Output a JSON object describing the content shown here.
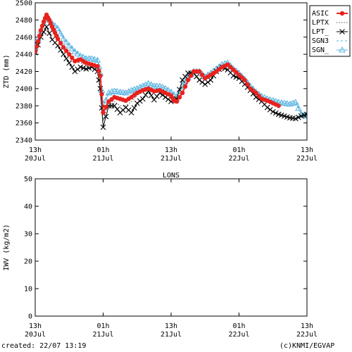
{
  "footer": {
    "created": "created: 22/07 13:19",
    "credit": "(c)KNMI/EGVAP"
  },
  "colors": {
    "ASIC": "#e8221d",
    "LPTX": "#555555",
    "LPT_": "#000000",
    "SGN3": "#5ab4e0",
    "SGN_": "#5ab4e0"
  },
  "x_ticks": [
    {
      "h": 0,
      "top": "13h",
      "bottom": "20Jul"
    },
    {
      "h": 12,
      "top": "01h",
      "bottom": "21Jul"
    },
    {
      "h": 24,
      "top": "13h",
      "bottom": "21Jul"
    },
    {
      "h": 36,
      "top": "01h",
      "bottom": "22Jul"
    },
    {
      "h": 48,
      "top": "13h",
      "bottom": "22Jul"
    }
  ],
  "chart_data": [
    {
      "type": "line",
      "ylabel": "ZTD (mm)",
      "ylim": [
        2340,
        2500
      ],
      "yticks": [
        2340,
        2360,
        2380,
        2400,
        2420,
        2440,
        2460,
        2480,
        2500
      ],
      "xlim_hours": [
        0,
        48
      ],
      "grid": false,
      "legend_position": "top-right",
      "series": [
        {
          "name": "ASIC",
          "style": "line-dots",
          "points": [
            [
              0,
              2443
            ],
            [
              0.5,
              2455
            ],
            [
              1,
              2468
            ],
            [
              1.5,
              2478
            ],
            [
              2,
              2486
            ],
            [
              2.5,
              2480
            ],
            [
              3,
              2472
            ],
            [
              3.5,
              2465
            ],
            [
              4,
              2458
            ],
            [
              5,
              2448
            ],
            [
              6,
              2440
            ],
            [
              7,
              2432
            ],
            [
              8,
              2434
            ],
            [
              9,
              2430
            ],
            [
              10,
              2428
            ],
            [
              11,
              2426
            ],
            [
              11.5,
              2415
            ],
            [
              12,
              2372
            ],
            [
              13,
              2385
            ],
            [
              14,
              2390
            ],
            [
              15,
              2388
            ],
            [
              16,
              2386
            ],
            [
              17,
              2390
            ],
            [
              18,
              2395
            ],
            [
              19,
              2398
            ],
            [
              20,
              2400
            ],
            [
              21,
              2397
            ],
            [
              22,
              2398
            ],
            [
              23,
              2395
            ],
            [
              24,
              2392
            ],
            [
              24.5,
              2386
            ],
            [
              25,
              2385
            ],
            [
              26,
              2395
            ],
            [
              27,
              2410
            ],
            [
              28,
              2420
            ],
            [
              29,
              2420
            ],
            [
              30,
              2412
            ],
            [
              31,
              2416
            ],
            [
              32,
              2420
            ],
            [
              33,
              2425
            ],
            [
              34,
              2428
            ],
            [
              35,
              2422
            ],
            [
              36,
              2416
            ],
            [
              37,
              2410
            ],
            [
              38,
              2400
            ],
            [
              39,
              2395
            ],
            [
              40,
              2388
            ],
            [
              41,
              2386
            ],
            [
              42,
              2383
            ],
            [
              43,
              2380
            ]
          ]
        },
        {
          "name": "LPTX",
          "style": "dotted",
          "points": [
            [
              0,
              2445
            ],
            [
              1,
              2465
            ],
            [
              2,
              2480
            ],
            [
              3,
              2467
            ],
            [
              4,
              2457
            ],
            [
              5,
              2447
            ],
            [
              6,
              2438
            ],
            [
              7,
              2432
            ],
            [
              8,
              2430
            ],
            [
              9,
              2428
            ],
            [
              10,
              2427
            ],
            [
              11,
              2422
            ],
            [
              12,
              2362
            ],
            [
              13,
              2385
            ],
            [
              14,
              2385
            ],
            [
              15,
              2380
            ],
            [
              16,
              2380
            ],
            [
              17,
              2385
            ],
            [
              18,
              2392
            ],
            [
              19,
              2396
            ],
            [
              20,
              2398
            ],
            [
              21,
              2395
            ],
            [
              22,
              2396
            ],
            [
              23,
              2393
            ],
            [
              24,
              2390
            ],
            [
              25,
              2386
            ],
            [
              26,
              2400
            ],
            [
              27,
              2415
            ],
            [
              28,
              2420
            ],
            [
              29,
              2418
            ],
            [
              30,
              2412
            ],
            [
              31,
              2415
            ],
            [
              32,
              2420
            ],
            [
              33,
              2426
            ],
            [
              34,
              2428
            ],
            [
              35,
              2420
            ],
            [
              36,
              2415
            ],
            [
              37,
              2408
            ],
            [
              38,
              2400
            ],
            [
              39,
              2395
            ],
            [
              40,
              2388
            ],
            [
              41,
              2385
            ],
            [
              42,
              2382
            ],
            [
              43,
              2380
            ]
          ]
        },
        {
          "name": "LPT_",
          "style": "line-x",
          "points": [
            [
              0,
              2442
            ],
            [
              1,
              2460
            ],
            [
              2,
              2472
            ],
            [
              3,
              2457
            ],
            [
              4,
              2450
            ],
            [
              5,
              2440
            ],
            [
              6,
              2430
            ],
            [
              7,
              2420
            ],
            [
              8,
              2425
            ],
            [
              9,
              2423
            ],
            [
              10,
              2425
            ],
            [
              11,
              2420
            ],
            [
              11.5,
              2400
            ],
            [
              12,
              2355
            ],
            [
              13,
              2380
            ],
            [
              14,
              2380
            ],
            [
              15,
              2372
            ],
            [
              16,
              2378
            ],
            [
              17,
              2372
            ],
            [
              18,
              2383
            ],
            [
              19,
              2388
            ],
            [
              20,
              2397
            ],
            [
              21,
              2387
            ],
            [
              22,
              2395
            ],
            [
              23,
              2390
            ],
            [
              24,
              2385
            ],
            [
              25,
              2388
            ],
            [
              26,
              2410
            ],
            [
              27,
              2418
            ],
            [
              28,
              2418
            ],
            [
              29,
              2410
            ],
            [
              30,
              2405
            ],
            [
              31,
              2410
            ],
            [
              32,
              2420
            ],
            [
              33,
              2425
            ],
            [
              34,
              2422
            ],
            [
              35,
              2415
            ],
            [
              36,
              2412
            ],
            [
              37,
              2405
            ],
            [
              38,
              2398
            ],
            [
              39,
              2390
            ],
            [
              40,
              2385
            ],
            [
              41,
              2378
            ],
            [
              42,
              2373
            ],
            [
              43,
              2370
            ],
            [
              44,
              2368
            ],
            [
              45,
              2366
            ],
            [
              46,
              2365
            ],
            [
              47,
              2368
            ],
            [
              48,
              2370
            ]
          ]
        },
        {
          "name": "SGN3",
          "style": "dashed",
          "points": [
            [
              0,
              2450
            ],
            [
              1,
              2470
            ],
            [
              2,
              2488
            ],
            [
              3,
              2478
            ],
            [
              4,
              2472
            ],
            [
              5,
              2460
            ],
            [
              6,
              2452
            ],
            [
              7,
              2445
            ],
            [
              8,
              2440
            ],
            [
              9,
              2437
            ],
            [
              10,
              2437
            ],
            [
              11,
              2435
            ],
            [
              11.5,
              2420
            ],
            [
              12,
              2380
            ],
            [
              13,
              2398
            ],
            [
              14,
              2400
            ],
            [
              15,
              2398
            ],
            [
              16,
              2397
            ],
            [
              17,
              2400
            ],
            [
              18,
              2402
            ],
            [
              19,
              2405
            ],
            [
              20,
              2408
            ],
            [
              21,
              2405
            ],
            [
              22,
              2405
            ],
            [
              23,
              2402
            ],
            [
              24,
              2398
            ],
            [
              25,
              2392
            ],
            [
              26,
              2405
            ],
            [
              27,
              2415
            ],
            [
              28,
              2422
            ],
            [
              29,
              2422
            ],
            [
              30,
              2416
            ],
            [
              31,
              2420
            ],
            [
              32,
              2425
            ],
            [
              33,
              2430
            ],
            [
              34,
              2432
            ],
            [
              35,
              2425
            ],
            [
              36,
              2420
            ],
            [
              37,
              2413
            ],
            [
              38,
              2405
            ],
            [
              39,
              2398
            ],
            [
              40,
              2393
            ],
            [
              41,
              2390
            ],
            [
              42,
              2388
            ],
            [
              43,
              2386
            ],
            [
              44,
              2385
            ],
            [
              45,
              2384
            ],
            [
              46,
              2386
            ],
            [
              47,
              2372
            ],
            [
              48,
              2370
            ]
          ]
        },
        {
          "name": "SGN_",
          "style": "line-triangle",
          "points": [
            [
              0,
              2448
            ],
            [
              1,
              2468
            ],
            [
              2,
              2485
            ],
            [
              3,
              2476
            ],
            [
              4,
              2470
            ],
            [
              5,
              2458
            ],
            [
              6,
              2450
            ],
            [
              7,
              2443
            ],
            [
              8,
              2438
            ],
            [
              9,
              2435
            ],
            [
              10,
              2435
            ],
            [
              11,
              2433
            ],
            [
              11.5,
              2418
            ],
            [
              12,
              2378
            ],
            [
              13,
              2395
            ],
            [
              14,
              2397
            ],
            [
              15,
              2396
            ],
            [
              16,
              2395
            ],
            [
              17,
              2398
            ],
            [
              18,
              2400
            ],
            [
              19,
              2403
            ],
            [
              20,
              2406
            ],
            [
              21,
              2403
            ],
            [
              22,
              2403
            ],
            [
              23,
              2400
            ],
            [
              24,
              2396
            ],
            [
              25,
              2390
            ],
            [
              26,
              2403
            ],
            [
              27,
              2413
            ],
            [
              28,
              2420
            ],
            [
              29,
              2420
            ],
            [
              30,
              2414
            ],
            [
              31,
              2418
            ],
            [
              32,
              2423
            ],
            [
              33,
              2428
            ],
            [
              34,
              2430
            ],
            [
              35,
              2423
            ],
            [
              36,
              2418
            ],
            [
              37,
              2411
            ],
            [
              38,
              2403
            ],
            [
              39,
              2396
            ],
            [
              40,
              2391
            ],
            [
              41,
              2388
            ],
            [
              42,
              2386
            ],
            [
              43,
              2384
            ],
            [
              44,
              2383
            ],
            [
              45,
              2382
            ],
            [
              46,
              2384
            ],
            [
              47,
              2370
            ],
            [
              48,
              2368
            ]
          ]
        }
      ]
    },
    {
      "type": "line",
      "title": "LONS",
      "ylabel": "IWV (kg/m2)",
      "ylim": [
        0,
        50
      ],
      "yticks": [
        0,
        10,
        20,
        30,
        40,
        50
      ],
      "xlim_hours": [
        0,
        48
      ],
      "grid": false,
      "series": []
    }
  ]
}
